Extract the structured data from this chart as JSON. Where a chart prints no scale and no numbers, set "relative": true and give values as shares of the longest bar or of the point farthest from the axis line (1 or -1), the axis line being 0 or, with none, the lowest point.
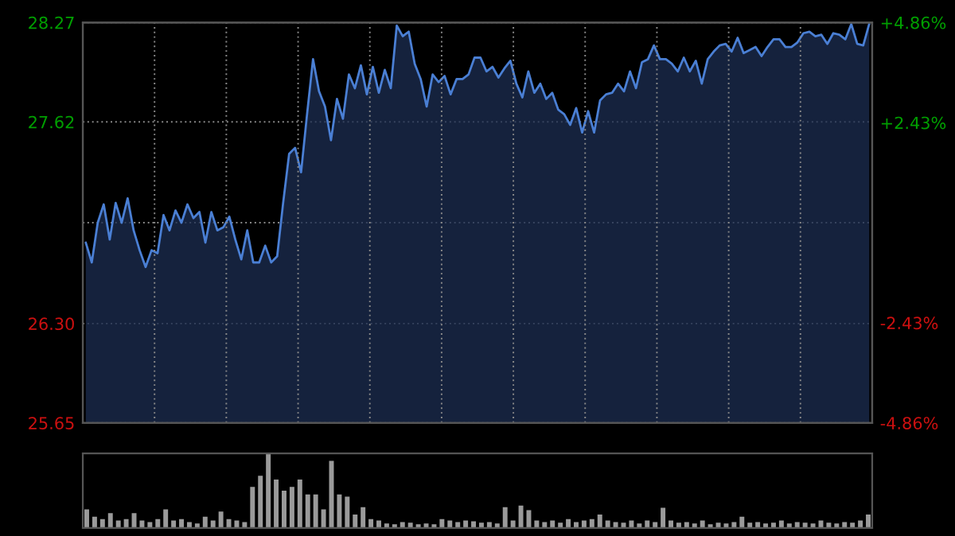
{
  "chart_data": [
    {
      "type": "area",
      "categories": [
        null,
        null,
        null,
        null,
        null,
        null,
        null,
        null,
        null,
        null,
        null,
        null,
        null,
        null,
        null,
        null,
        null,
        null,
        null,
        null,
        null,
        null,
        null,
        null,
        null,
        null,
        null,
        null,
        null,
        null,
        null,
        null,
        null,
        null,
        null,
        null,
        null,
        null,
        null,
        null,
        null,
        null,
        null,
        null,
        null,
        null,
        null,
        null,
        null,
        null,
        null,
        null,
        null,
        null,
        null,
        null,
        null,
        null,
        null,
        null,
        null,
        null,
        null,
        null,
        null,
        null,
        null,
        null,
        null,
        null,
        null,
        null,
        null,
        null,
        null,
        null,
        null,
        null,
        null,
        null,
        null,
        null,
        null,
        null,
        null,
        null,
        null,
        null,
        null,
        null,
        null,
        null,
        null,
        null,
        null,
        null,
        null,
        null,
        null,
        null,
        null,
        null,
        null,
        null,
        null,
        null,
        null,
        null,
        null,
        null,
        null,
        null,
        null,
        null,
        null,
        null,
        null,
        null,
        null,
        null,
        null,
        null,
        null,
        null,
        null,
        null,
        null,
        null,
        null,
        null,
        null,
        null
      ],
      "series": [
        {
          "color": "#4a7fd4",
          "values": [
            26.83,
            26.7,
            26.96,
            27.08,
            26.85,
            27.09,
            26.96,
            27.12,
            26.91,
            26.78,
            26.67,
            26.78,
            26.76,
            27.01,
            26.91,
            27.04,
            26.96,
            27.08,
            26.99,
            27.03,
            26.83,
            27.03,
            26.91,
            26.93,
            27.0,
            26.85,
            26.72,
            26.91,
            26.7,
            26.7,
            26.81,
            26.7,
            26.74,
            27.09,
            27.41,
            27.45,
            27.29,
            27.67,
            28.03,
            27.82,
            27.72,
            27.5,
            27.77,
            27.64,
            27.93,
            27.84,
            27.99,
            27.8,
            27.98,
            27.81,
            27.96,
            27.84,
            28.25,
            28.18,
            28.21,
            28.0,
            27.9,
            27.72,
            27.93,
            27.88,
            27.92,
            27.8,
            27.9,
            27.9,
            27.93,
            28.04,
            28.04,
            27.95,
            27.98,
            27.91,
            27.97,
            28.02,
            27.87,
            27.78,
            27.95,
            27.81,
            27.87,
            27.77,
            27.81,
            27.7,
            27.67,
            27.6,
            27.71,
            27.55,
            27.69,
            27.55,
            27.76,
            27.8,
            27.81,
            27.87,
            27.82,
            27.95,
            27.84,
            28.01,
            28.03,
            28.12,
            28.03,
            28.03,
            28.0,
            27.95,
            28.04,
            27.95,
            28.02,
            27.87,
            28.03,
            28.08,
            28.12,
            28.13,
            28.08,
            28.17,
            28.07,
            28.09,
            28.11,
            28.05,
            28.11,
            28.16,
            28.16,
            28.11,
            28.11,
            28.14,
            28.2,
            28.21,
            28.18,
            28.19,
            28.13,
            28.2,
            28.19,
            28.16,
            28.26,
            28.13,
            28.12,
            28.26
          ]
        }
      ],
      "ylim": [
        25.65,
        28.27
      ],
      "yticks": [
        25.65,
        {
          "value": 26.3,
          "label": "26.30"
        },
        {
          "value": 26.96,
          "label": null
        },
        27.62,
        28.27
      ],
      "y2lim": [
        -4.86,
        4.86
      ],
      "y2ticks": [
        {
          "value": -4.86,
          "label": "-4.86%"
        },
        {
          "value": -2.43,
          "label": "-2.43%"
        },
        {
          "value": 2.43,
          "label": "+2.43%"
        },
        {
          "value": 4.86,
          "label": "+4.86%"
        }
      ],
      "grid": true,
      "legend": false
    },
    {
      "type": "bar",
      "relative": true,
      "categories": [
        null,
        null,
        null,
        null,
        null,
        null,
        null,
        null,
        null,
        null,
        null,
        null,
        null,
        null,
        null,
        null,
        null,
        null,
        null,
        null,
        null,
        null,
        null,
        null,
        null,
        null,
        null,
        null,
        null,
        null,
        null,
        null,
        null,
        null,
        null,
        null,
        null,
        null,
        null,
        null,
        null,
        null,
        null,
        null,
        null,
        null,
        null,
        null,
        null,
        null,
        null,
        null,
        null,
        null,
        null,
        null,
        null,
        null,
        null,
        null,
        null,
        null,
        null,
        null,
        null,
        null,
        null,
        null,
        null,
        null,
        null,
        null,
        null,
        null,
        null,
        null,
        null,
        null,
        null,
        null,
        null,
        null,
        null,
        null,
        null,
        null,
        null,
        null,
        null,
        null,
        null,
        null,
        null,
        null,
        null,
        null,
        null,
        null,
        null,
        null
      ],
      "series": [
        {
          "color": "#9a9a9a",
          "values": [
            0.25,
            0.15,
            0.12,
            0.2,
            0.1,
            0.12,
            0.2,
            0.1,
            0.08,
            0.12,
            0.25,
            0.1,
            0.12,
            0.08,
            0.06,
            0.15,
            0.1,
            0.22,
            0.12,
            0.1,
            0.08,
            0.55,
            0.7,
            1.0,
            0.65,
            0.5,
            0.55,
            0.65,
            0.45,
            0.45,
            0.25,
            0.9,
            0.45,
            0.42,
            0.18,
            0.28,
            0.12,
            0.1,
            0.06,
            0.05,
            0.08,
            0.07,
            0.05,
            0.06,
            0.05,
            0.12,
            0.1,
            0.08,
            0.1,
            0.09,
            0.07,
            0.08,
            0.06,
            0.28,
            0.1,
            0.3,
            0.24,
            0.1,
            0.08,
            0.1,
            0.07,
            0.12,
            0.08,
            0.1,
            0.12,
            0.18,
            0.1,
            0.08,
            0.07,
            0.1,
            0.06,
            0.1,
            0.08,
            0.27,
            0.1,
            0.07,
            0.08,
            0.06,
            0.1,
            0.05,
            0.07,
            0.06,
            0.08,
            0.15,
            0.07,
            0.08,
            0.06,
            0.07,
            0.1,
            0.06,
            0.08,
            0.07,
            0.06,
            0.1,
            0.07,
            0.06,
            0.08,
            0.07,
            0.1,
            0.18
          ]
        }
      ],
      "legend": false
    }
  ]
}
